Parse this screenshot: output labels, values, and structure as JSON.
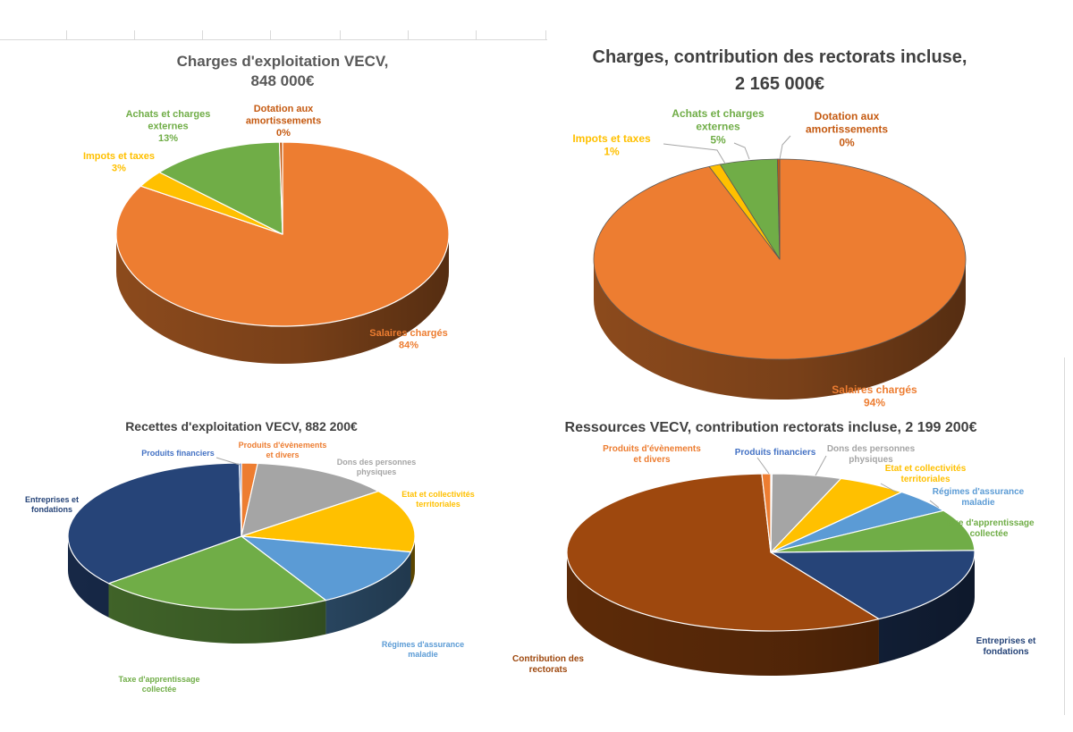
{
  "chart_data": [
    {
      "type": "pie",
      "title_lines": [
        "Charges d'exploitation VECV,",
        "848 000€"
      ],
      "slices": [
        {
          "label": "Salaires chargés",
          "value": 84,
          "pct_text": "84%",
          "color": "#ED7D31"
        },
        {
          "label": "Impots et taxes",
          "value": 3,
          "pct_text": "3%",
          "color": "#FFC000"
        },
        {
          "label": "Achats et charges externes",
          "value": 13,
          "pct_text": "13%",
          "color": "#70AD47"
        },
        {
          "label": "Dotation aux amortissements",
          "value": 0.3,
          "pct_text": "0%",
          "color": "#C55A11"
        }
      ]
    },
    {
      "type": "pie",
      "title_lines": [
        "Charges, contribution des rectorats incluse,",
        "2 165 000€"
      ],
      "slices": [
        {
          "label": "Salaires chargés",
          "value": 94,
          "pct_text": "94%",
          "color": "#ED7D31"
        },
        {
          "label": "Impots et taxes",
          "value": 1,
          "pct_text": "1%",
          "color": "#FFC000"
        },
        {
          "label": "Achats et charges externes",
          "value": 5,
          "pct_text": "5%",
          "color": "#70AD47"
        },
        {
          "label": "Dotation aux amortissements",
          "value": 0.2,
          "pct_text": "0%",
          "color": "#C55A11"
        }
      ]
    },
    {
      "type": "pie",
      "title_lines": [
        "Recettes d'exploitation VECV, 882 200€"
      ],
      "slices": [
        {
          "label": "Produits d'évènements et divers",
          "value": 1.5,
          "color": "#ED7D31"
        },
        {
          "label": "Dons des personnes physiques",
          "value": 13,
          "color": "#A5A5A5"
        },
        {
          "label": "Etat et collectivités territoriales",
          "value": 14,
          "color": "#FFC000"
        },
        {
          "label": "Régimes d'assurance maladie",
          "value": 13.5,
          "color": "#5B9BD5"
        },
        {
          "label": "Taxe d'apprentissage collectée",
          "value": 22,
          "color": "#70AD47"
        },
        {
          "label": "Entreprises et fondations",
          "value": 36,
          "color": "#264478"
        },
        {
          "label": "Produits financiers",
          "value": 0.2,
          "color": "#4472C4"
        }
      ]
    },
    {
      "type": "pie",
      "title_lines": [
        "Ressources VECV, contribution rectorats incluse, 2 199 200€"
      ],
      "slices": [
        {
          "label": "Produits financiers",
          "value": 0.1,
          "color": "#4472C4"
        },
        {
          "label": "Dons des personnes physiques",
          "value": 5.5,
          "color": "#A5A5A5"
        },
        {
          "label": "Etat et collectivités territoriales",
          "value": 5.5,
          "color": "#FFC000"
        },
        {
          "label": "Régimes d'assurance maladie",
          "value": 5,
          "color": "#5B9BD5"
        },
        {
          "label": "Taxe d'apprentissage collectée",
          "value": 8.5,
          "color": "#70AD47"
        },
        {
          "label": "Entreprises et fondations",
          "value": 16.5,
          "color": "#264478"
        },
        {
          "label": "Contribution des rectorats",
          "value": 58.2,
          "color": "#9E480E"
        },
        {
          "label": "Produits d'évènements et divers",
          "value": 0.7,
          "color": "#ED7D31"
        }
      ]
    }
  ]
}
